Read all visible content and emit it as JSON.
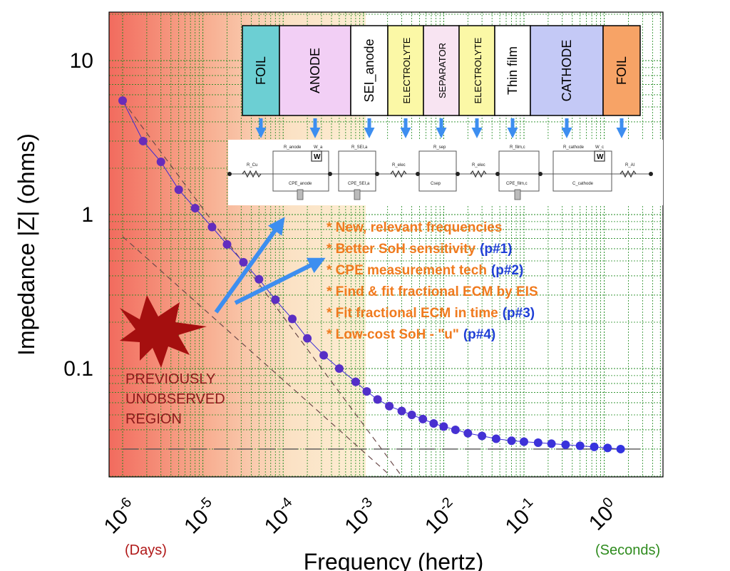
{
  "chart_data": {
    "type": "scatter",
    "title": "",
    "xlabel": "Frequency (hertz)",
    "ylabel": "Impedance |Z| (ohms)",
    "x_scale": "log",
    "y_scale": "log",
    "xlim": [
      1e-06,
      3
    ],
    "ylim": [
      0.02,
      20
    ],
    "x_ticks": [
      {
        "base": "10",
        "exp": "-6",
        "value": 1e-06
      },
      {
        "base": "10",
        "exp": "-5",
        "value": 1e-05
      },
      {
        "base": "10",
        "exp": "-4",
        "value": 0.0001
      },
      {
        "base": "10",
        "exp": "-3",
        "value": 0.001
      },
      {
        "base": "10",
        "exp": "-2",
        "value": 0.01
      },
      {
        "base": "10",
        "exp": "-1",
        "value": 0.1
      },
      {
        "base": "10",
        "exp": "0",
        "value": 1
      }
    ],
    "y_ticks": [
      {
        "label": "10",
        "value": 10
      },
      {
        "label": "1",
        "value": 1
      },
      {
        "label": "0.1",
        "value": 0.1
      }
    ],
    "grid": true,
    "series": [
      {
        "color": "#3b2bd6",
        "x": [
          1e-06,
          1.8e-06,
          3e-06,
          5e-06,
          8e-06,
          1.3e-05,
          2e-05,
          3.2e-05,
          5e-05,
          8e-05,
          0.00013,
          0.0002,
          0.00032,
          0.0005,
          0.0008,
          0.0011,
          0.0015,
          0.0021,
          0.003,
          0.004,
          0.0055,
          0.0075,
          0.01,
          0.014,
          0.02,
          0.03,
          0.045,
          0.07,
          0.1,
          0.15,
          0.22,
          0.33,
          0.5,
          0.75,
          1.1,
          1.6
        ],
        "y": [
          5.5,
          3.0,
          2.2,
          1.45,
          1.1,
          0.83,
          0.64,
          0.49,
          0.38,
          0.28,
          0.21,
          0.157,
          0.122,
          0.1,
          0.082,
          0.071,
          0.063,
          0.057,
          0.053,
          0.05,
          0.047,
          0.044,
          0.042,
          0.04,
          0.038,
          0.0365,
          0.035,
          0.034,
          0.0335,
          0.033,
          0.0325,
          0.032,
          0.0315,
          0.031,
          0.0305,
          0.03
        ]
      }
    ],
    "guide_lines": [
      {
        "style": "dashed",
        "x": [
          1e-06,
          0.003
        ],
        "y": [
          5.5,
          0.02
        ]
      },
      {
        "style": "dashed",
        "x": [
          1e-06,
          0.0022
        ],
        "y": [
          0.72,
          0.02
        ]
      },
      {
        "style": "dashed",
        "x": [
          1e-06,
          3
        ],
        "y": [
          0.03,
          0.03
        ]
      }
    ],
    "annotations": {
      "region_label": [
        "PREVIOUSLY",
        "UNOBSERVED",
        "REGION"
      ],
      "bullets": [
        {
          "text": "* New, relevant frequencies",
          "ref": ""
        },
        {
          "text": "* Better SoH sensitivity",
          "ref": "(p#1)"
        },
        {
          "text": "* CPE measurement tech",
          "ref": "(p#2)"
        },
        {
          "text": "* Find & fit fractional ECM by EIS",
          "ref": ""
        },
        {
          "text": "* Fit fractional ECM in time",
          "ref": "(p#3)"
        },
        {
          "text": "* Low-cost SoH - \"u\"",
          "ref": "(p#4)"
        }
      ],
      "days_label": "(Days)",
      "seconds_label": "(Seconds)"
    },
    "cell_layers": [
      {
        "label": "FOIL",
        "color": "#6ccfd3",
        "small": false
      },
      {
        "label": "ANODE",
        "color": "#f2cff5",
        "small": false
      },
      {
        "label": "SEI_anode",
        "color": "#ffffff",
        "small": false
      },
      {
        "label": "ELECTROLYTE",
        "color": "#fbf8a6",
        "small": true
      },
      {
        "label": "SEPARATOR",
        "color": "#f8e4f2",
        "small": true
      },
      {
        "label": "ELECTROLYTE",
        "color": "#fbf8a6",
        "small": true
      },
      {
        "label": "Thin film",
        "color": "#ffffff",
        "small": false
      },
      {
        "label": "CATHODE",
        "color": "#c4c9f6",
        "small": false
      },
      {
        "label": "FOIL",
        "color": "#f7a366",
        "small": false
      }
    ],
    "ecm_labels": {
      "r_cu": "R_Cu",
      "r_anode": "R_anode",
      "w_a": "W_a",
      "w_symbol": "W",
      "cpe_anode": "CPE_anode",
      "r_sei": "R_SEI,a",
      "cpe_sei": "CPE_SEI,a",
      "r_elec1": "R_elec",
      "r_sep": "R_sep",
      "c_sep": "Csep",
      "r_elec2": "R_elec",
      "r_film": "R_film,c",
      "cpe_film": "CPE_film,c",
      "r_cathode": "R_cathode",
      "w_c": "W_c",
      "c_cathode": "C_cathode",
      "r_al": "R_Al"
    },
    "colors": {
      "marker": "#3b2bd6",
      "bullet_text": "#f07a1e",
      "ref_text": "#1f3fd6",
      "arrow": "#3d8ef0",
      "burst": "#a50f0f",
      "grid": "#1f8a1f",
      "red_region": "#f28074",
      "orange_region": "#fbe3b0",
      "days": "#b01818",
      "seconds": "#2e8b1d"
    }
  }
}
